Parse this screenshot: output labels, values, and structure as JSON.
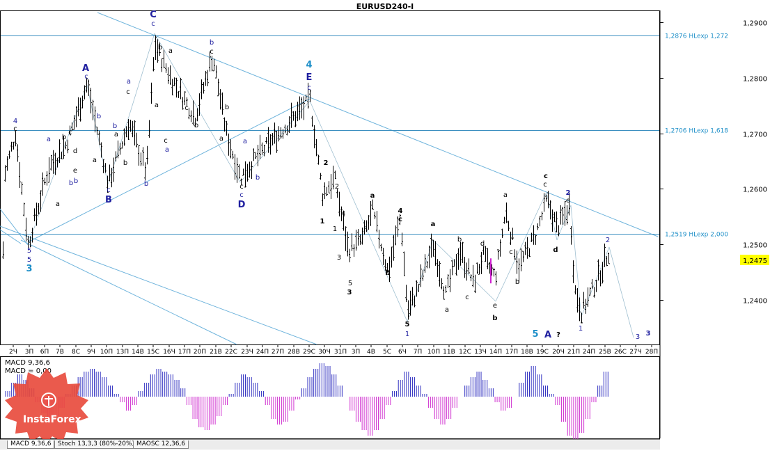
{
  "title": "EURUSD240-I",
  "price_tag": "1,2475",
  "chart_data": {
    "type": "candlestick",
    "title": "EURUSD240-I",
    "ylim": [
      1.232,
      1.292
    ],
    "y_ticks": [
      {
        "value": 1.29,
        "label": "1,2900"
      },
      {
        "value": 1.28,
        "label": "1,2800"
      },
      {
        "value": 1.27,
        "label": "1,2700"
      },
      {
        "value": 1.26,
        "label": "1,2600"
      },
      {
        "value": 1.25,
        "label": "1,2500"
      },
      {
        "value": 1.24,
        "label": "1,2400"
      }
    ],
    "x_ticks": [
      "2Ч",
      "3П",
      "6П",
      "7В",
      "8С",
      "9Ч",
      "10П",
      "13П",
      "14В",
      "15С",
      "16Ч",
      "17П",
      "20П",
      "21В",
      "22С",
      "23Ч",
      "24П",
      "27П",
      "28В",
      "29С",
      "30Ч",
      "31П",
      "3П",
      "4В",
      "5С",
      "6Ч",
      "7П",
      "10П",
      "11В",
      "12С",
      "13Ч",
      "14П",
      "17П",
      "18В",
      "19С",
      "20Ч",
      "21П",
      "24П",
      "25В",
      "26С",
      "27Ч",
      "28П"
    ],
    "hlines": [
      {
        "value": 1.2876,
        "label": "1,2876 HLexp 1,272"
      },
      {
        "value": 1.2706,
        "label": "1,2706 HLexp 1,618"
      },
      {
        "value": 1.2519,
        "label": "1,2519 HLexp 2,000"
      }
    ],
    "current_price": 1.2475,
    "indicator_labels": [
      "MACD 9,36,6",
      "MACD = 0,00"
    ],
    "macd_hist": [
      0.2,
      0.5,
      0.8,
      0.6,
      0.3,
      -0.2,
      -0.6,
      -0.9,
      -0.7,
      -0.4,
      0.1,
      0.4,
      0.7,
      0.9,
      1.0,
      0.9,
      0.7,
      0.4,
      0.1,
      -0.2,
      -0.5,
      -0.3,
      0.2,
      0.5,
      0.8,
      1.0,
      0.9,
      0.8,
      0.6,
      0.3,
      -0.3,
      -0.8,
      -1.1,
      -1.2,
      -1.0,
      -0.7,
      -0.3,
      0.1,
      0.5,
      0.8,
      0.7,
      0.5,
      0.2,
      -0.3,
      -0.8,
      -1.0,
      -0.9,
      -0.5,
      -0.1,
      0.3,
      0.7,
      1.0,
      1.2,
      1.1,
      0.8,
      0.4,
      0.0,
      -0.5,
      -0.9,
      -1.2,
      -1.4,
      -1.2,
      -0.8,
      -0.3,
      0.2,
      0.6,
      0.9,
      0.7,
      0.4,
      0.1,
      -0.4,
      -0.8,
      -1.0,
      -0.8,
      -0.4,
      0.0,
      0.4,
      0.7,
      0.9,
      0.6,
      0.3,
      -0.2,
      -0.5,
      -0.4,
      0.0,
      0.5,
      0.9,
      1.1,
      0.8,
      0.4,
      0.1,
      -0.3,
      -0.9,
      -1.4,
      -1.6,
      -1.3,
      -0.8,
      -0.2,
      0.4,
      0.9
    ],
    "annotations": [
      {
        "text": "EURUSD240-I",
        "role": "title"
      }
    ]
  },
  "wave_labels": [
    {
      "t": "4",
      "c": "#2020a0",
      "x": 22,
      "y": 177
    },
    {
      "t": "c",
      "c": "#000",
      "x": 22,
      "y": 188
    },
    {
      "t": "5",
      "c": "#2020a0",
      "x": 42,
      "y": 363
    },
    {
      "t": "5",
      "c": "#2020a0",
      "x": 42,
      "y": 376
    },
    {
      "t": "3",
      "c": "#1e8fc8",
      "x": 42,
      "y": 390,
      "big": true
    },
    {
      "t": "a",
      "c": "#2020a0",
      "x": 70,
      "y": 203
    },
    {
      "t": "a",
      "c": "#000",
      "x": 83,
      "y": 296
    },
    {
      "t": "b",
      "c": "#000",
      "x": 92,
      "y": 200
    },
    {
      "t": "c",
      "c": "#000",
      "x": 101,
      "y": 193
    },
    {
      "t": "b",
      "c": "#2020a0",
      "x": 102,
      "y": 266
    },
    {
      "t": "e",
      "c": "#000",
      "x": 108,
      "y": 248
    },
    {
      "t": "b",
      "c": "#2020a0",
      "x": 109,
      "y": 263
    },
    {
      "t": "d",
      "c": "#000",
      "x": 108,
      "y": 220
    },
    {
      "t": "A",
      "c": "#2020a0",
      "x": 123,
      "y": 102,
      "big": true
    },
    {
      "t": "c",
      "c": "#2020a0",
      "x": 124,
      "y": 113
    },
    {
      "t": "b",
      "c": "#2020a0",
      "x": 142,
      "y": 170
    },
    {
      "t": "a",
      "c": "#000",
      "x": 136,
      "y": 233
    },
    {
      "t": "c",
      "c": "#2020a0",
      "x": 156,
      "y": 276
    },
    {
      "t": "B",
      "c": "#2020a0",
      "x": 156,
      "y": 291,
      "big": true
    },
    {
      "t": "b",
      "c": "#2020a0",
      "x": 165,
      "y": 184
    },
    {
      "t": "a",
      "c": "#000",
      "x": 167,
      "y": 196
    },
    {
      "t": "a",
      "c": "#2020a0",
      "x": 185,
      "y": 120
    },
    {
      "t": "c",
      "c": "#000",
      "x": 184,
      "y": 135
    },
    {
      "t": "b",
      "c": "#000",
      "x": 180,
      "y": 237
    },
    {
      "t": "b",
      "c": "#2020a0",
      "x": 210,
      "y": 267
    },
    {
      "t": "a",
      "c": "#000",
      "x": 225,
      "y": 154
    },
    {
      "t": "C",
      "c": "#2020a0",
      "x": 220,
      "y": 25,
      "big": true
    },
    {
      "t": "c",
      "c": "#2020a0",
      "x": 220,
      "y": 37
    },
    {
      "t": "b",
      "c": "#000",
      "x": 230,
      "y": 71
    },
    {
      "t": "a",
      "c": "#000",
      "x": 245,
      "y": 76
    },
    {
      "t": "c",
      "c": "#000",
      "x": 238,
      "y": 205
    },
    {
      "t": "a",
      "c": "#2020a0",
      "x": 240,
      "y": 218
    },
    {
      "t": "b",
      "c": "#2020a0",
      "x": 304,
      "y": 64
    },
    {
      "t": "c",
      "c": "#000",
      "x": 304,
      "y": 77
    },
    {
      "t": "c",
      "c": "#000",
      "x": 268,
      "y": 158
    },
    {
      "t": "b",
      "c": "#000",
      "x": 282,
      "y": 183
    },
    {
      "t": "b",
      "c": "#000",
      "x": 326,
      "y": 157
    },
    {
      "t": "a",
      "c": "#000",
      "x": 318,
      "y": 202
    },
    {
      "t": "c",
      "c": "#000",
      "x": 347,
      "y": 271
    },
    {
      "t": "c",
      "c": "#2020a0",
      "x": 347,
      "y": 283
    },
    {
      "t": "D",
      "c": "#2020a0",
      "x": 347,
      "y": 298,
      "big": true
    },
    {
      "t": "a",
      "c": "#2020a0",
      "x": 352,
      "y": 206
    },
    {
      "t": "b",
      "c": "#2020a0",
      "x": 370,
      "y": 258
    },
    {
      "t": "4",
      "c": "#1e8fc8",
      "x": 444,
      "y": 97,
      "big": true
    },
    {
      "t": "E",
      "c": "#2020a0",
      "x": 444,
      "y": 115,
      "big": true
    },
    {
      "t": "c",
      "c": "#2020a0",
      "x": 444,
      "y": 129
    },
    {
      "t": "2",
      "c": "#000",
      "x": 468,
      "y": 237,
      "bold": true
    },
    {
      "t": "2",
      "c": "#000",
      "x": 484,
      "y": 271
    },
    {
      "t": "1",
      "c": "#000",
      "x": 463,
      "y": 321,
      "bold": true
    },
    {
      "t": "4",
      "c": "#000",
      "x": 493,
      "y": 310
    },
    {
      "t": "1",
      "c": "#000",
      "x": 481,
      "y": 332
    },
    {
      "t": "3",
      "c": "#000",
      "x": 487,
      "y": 373
    },
    {
      "t": "5",
      "c": "#000",
      "x": 503,
      "y": 410
    },
    {
      "t": "3",
      "c": "#000",
      "x": 502,
      "y": 423,
      "bold": true
    },
    {
      "t": "a",
      "c": "#000",
      "x": 535,
      "y": 284,
      "bold": true
    },
    {
      "t": "b",
      "c": "#000",
      "x": 557,
      "y": 395,
      "bold": true
    },
    {
      "t": "4",
      "c": "#000",
      "x": 575,
      "y": 306,
      "bold": true
    },
    {
      "t": "c",
      "c": "#000",
      "x": 575,
      "y": 318,
      "bold": true
    },
    {
      "t": "5",
      "c": "#000",
      "x": 585,
      "y": 469,
      "bold": true
    },
    {
      "t": "1",
      "c": "#2020a0",
      "x": 585,
      "y": 483
    },
    {
      "t": "a",
      "c": "#000",
      "x": 622,
      "y": 325,
      "bold": true
    },
    {
      "t": "b",
      "c": "#000",
      "x": 660,
      "y": 347
    },
    {
      "t": "a",
      "c": "#000",
      "x": 642,
      "y": 448
    },
    {
      "t": "c",
      "c": "#000",
      "x": 671,
      "y": 430
    },
    {
      "t": "d",
      "c": "#000",
      "x": 693,
      "y": 353
    },
    {
      "t": "e",
      "c": "#000",
      "x": 711,
      "y": 442
    },
    {
      "t": "b",
      "c": "#000",
      "x": 711,
      "y": 460,
      "bold": true
    },
    {
      "t": "a",
      "c": "#000",
      "x": 726,
      "y": 283
    },
    {
      "t": "c",
      "c": "#000",
      "x": 734,
      "y": 365
    },
    {
      "t": "b",
      "c": "#000",
      "x": 743,
      "y": 408
    },
    {
      "t": "c",
      "c": "#000",
      "x": 784,
      "y": 256,
      "bold": true
    },
    {
      "t": "c",
      "c": "#000",
      "x": 783,
      "y": 268
    },
    {
      "t": "2",
      "c": "#2020a0",
      "x": 816,
      "y": 280,
      "bold": true
    },
    {
      "t": "e",
      "c": "#000",
      "x": 816,
      "y": 291
    },
    {
      "t": "d",
      "c": "#000",
      "x": 798,
      "y": 362,
      "bold": true
    },
    {
      "t": "5",
      "c": "#1e8fc8",
      "x": 769,
      "y": 484,
      "big": true
    },
    {
      "t": "A",
      "c": "#2020a0",
      "x": 787,
      "y": 485,
      "big": true
    },
    {
      "t": "?",
      "c": "#000",
      "x": 802,
      "y": 484,
      "bold": true
    },
    {
      "t": "1",
      "c": "#2020a0",
      "x": 834,
      "y": 475
    },
    {
      "t": "2",
      "c": "#2020a0",
      "x": 873,
      "y": 348
    },
    {
      "t": "3",
      "c": "#2020a0",
      "x": 916,
      "y": 487
    },
    {
      "t": "3",
      "c": "#2020a0",
      "x": 931,
      "y": 482,
      "bold": true
    }
  ],
  "tabs": [
    "MACD 9,36,6",
    "Stoch 13,3,3 (80%-20%)",
    "MAOSC 12,36,6"
  ],
  "logo": {
    "text": "InstaForex"
  }
}
